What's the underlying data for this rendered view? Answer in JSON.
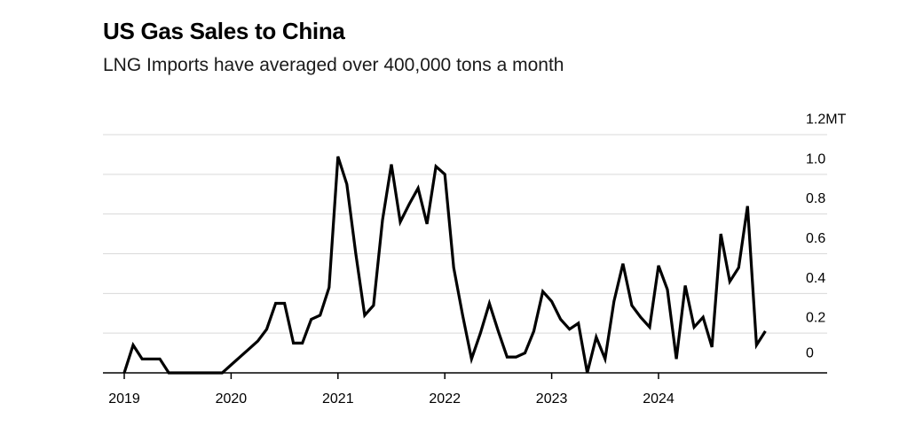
{
  "title": "US Gas Sales to China",
  "subtitle": "LNG Imports have averaged over 400,000 tons a month",
  "chart_data": {
    "type": "line",
    "title": "US Gas Sales to China",
    "subtitle": "LNG Imports have averaged over 400,000 tons a month",
    "xlabel": "",
    "ylabel": "",
    "y_unit": "MT",
    "ylim": [
      0,
      1.2
    ],
    "y_ticks": [
      0,
      0.2,
      0.4,
      0.6,
      0.8,
      1.0,
      1.2
    ],
    "y_tick_labels": [
      "0",
      "0.2",
      "0.4",
      "0.6",
      "0.8",
      "1.0",
      "1.2MT"
    ],
    "x_ticks": [
      "2019-01",
      "2020-01",
      "2021-01",
      "2022-01",
      "2023-01",
      "2024-01"
    ],
    "x_tick_labels": [
      "2019",
      "2020",
      "2021",
      "2022",
      "2023",
      "2024"
    ],
    "grid": true,
    "series": [
      {
        "points": [
          [
            "2019-01",
            0.0
          ],
          [
            "2019-02",
            0.14
          ],
          [
            "2019-03",
            0.07
          ],
          [
            "2019-04",
            0.07
          ],
          [
            "2019-05",
            0.07
          ],
          [
            "2019-06",
            0.0
          ],
          [
            "2019-07",
            0.0
          ],
          [
            "2019-08",
            0.0
          ],
          [
            "2019-09",
            0.0
          ],
          [
            "2019-10",
            0.0
          ],
          [
            "2019-11",
            0.0
          ],
          [
            "2019-12",
            0.0
          ],
          [
            "2020-01",
            0.04
          ],
          [
            "2020-02",
            0.08
          ],
          [
            "2020-03",
            0.12
          ],
          [
            "2020-04",
            0.16
          ],
          [
            "2020-05",
            0.22
          ],
          [
            "2020-06",
            0.35
          ],
          [
            "2020-07",
            0.35
          ],
          [
            "2020-08",
            0.15
          ],
          [
            "2020-09",
            0.15
          ],
          [
            "2020-10",
            0.27
          ],
          [
            "2020-11",
            0.29
          ],
          [
            "2020-12",
            0.43
          ],
          [
            "2021-01",
            1.09
          ],
          [
            "2021-02",
            0.95
          ],
          [
            "2021-03",
            0.6
          ],
          [
            "2021-04",
            0.29
          ],
          [
            "2021-05",
            0.34
          ],
          [
            "2021-06",
            0.77
          ],
          [
            "2021-07",
            1.05
          ],
          [
            "2021-08",
            0.76
          ],
          [
            "2021-09",
            0.85
          ],
          [
            "2021-10",
            0.93
          ],
          [
            "2021-11",
            0.75
          ],
          [
            "2021-12",
            1.04
          ],
          [
            "2022-01",
            1.0
          ],
          [
            "2022-02",
            0.53
          ],
          [
            "2022-03",
            0.29
          ],
          [
            "2022-04",
            0.07
          ],
          [
            "2022-05",
            0.2
          ],
          [
            "2022-06",
            0.35
          ],
          [
            "2022-07",
            0.21
          ],
          [
            "2022-08",
            0.08
          ],
          [
            "2022-09",
            0.08
          ],
          [
            "2022-10",
            0.1
          ],
          [
            "2022-11",
            0.21
          ],
          [
            "2022-12",
            0.41
          ],
          [
            "2023-01",
            0.36
          ],
          [
            "2023-02",
            0.27
          ],
          [
            "2023-03",
            0.22
          ],
          [
            "2023-04",
            0.25
          ],
          [
            "2023-05",
            0.0
          ],
          [
            "2023-06",
            0.18
          ],
          [
            "2023-07",
            0.07
          ],
          [
            "2023-08",
            0.36
          ],
          [
            "2023-09",
            0.55
          ],
          [
            "2023-10",
            0.34
          ],
          [
            "2023-11",
            0.28
          ],
          [
            "2023-12",
            0.23
          ],
          [
            "2024-01",
            0.54
          ],
          [
            "2024-02",
            0.42
          ],
          [
            "2024-03",
            0.07
          ],
          [
            "2024-04",
            0.44
          ],
          [
            "2024-05",
            0.23
          ],
          [
            "2024-06",
            0.28
          ],
          [
            "2024-07",
            0.13
          ],
          [
            "2024-08",
            0.7
          ],
          [
            "2024-09",
            0.46
          ],
          [
            "2024-10",
            0.53
          ],
          [
            "2024-11",
            0.84
          ],
          [
            "2024-12",
            0.14
          ],
          [
            "2025-01",
            0.21
          ]
        ]
      }
    ]
  }
}
